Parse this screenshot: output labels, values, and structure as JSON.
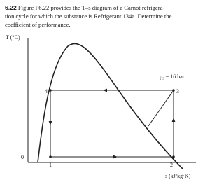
{
  "problem": {
    "number": "6.22",
    "lines": [
      "Figure P6.22 provides the T–s diagram of a Carnot refrigera-",
      "tion cycle for which the substance is Refrigerant 134a. Determine the",
      "coefficient of performance."
    ]
  },
  "diagram": {
    "y_axis_label": "T (°C)",
    "x_axis_label": "s (kJ/kg·K)",
    "pressure_label": "p₃ = 16 bar",
    "zero_label": "0",
    "state_labels": [
      "1",
      "2",
      "3",
      "4"
    ]
  }
}
